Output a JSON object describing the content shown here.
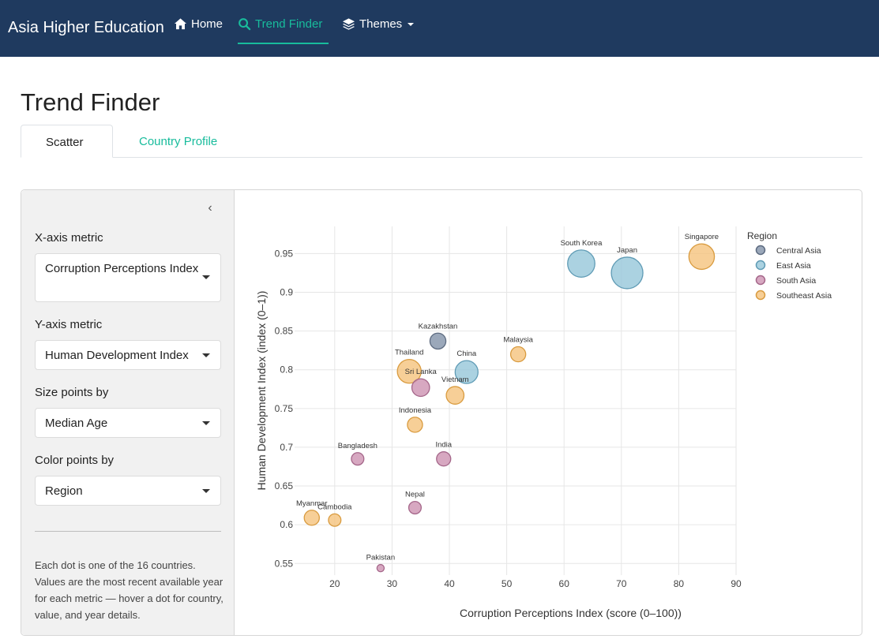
{
  "nav": {
    "brand": "Asia Higher Education",
    "items": [
      {
        "label": "Home",
        "icon": "home-icon"
      },
      {
        "label": "Trend Finder",
        "icon": "search-icon"
      },
      {
        "label": "Themes",
        "icon": "layers-icon"
      }
    ]
  },
  "page": {
    "title": "Trend Finder"
  },
  "tabs": [
    "Scatter",
    "Country Profile"
  ],
  "sidebar": {
    "collapse_glyph": "‹",
    "x_label": "X-axis metric",
    "x_value": "Corruption Perceptions Index",
    "y_label": "Y-axis metric",
    "y_value": "Human Development Index",
    "size_label": "Size points by",
    "size_value": "Median Age",
    "color_label": "Color points by",
    "color_value": "Region",
    "help": "Each dot is one of the 16 countries. Values are the most recent available year for each metric — hover a dot for country, value, and year details."
  },
  "colors": {
    "accent": "#18bc9c",
    "navbar": "#1f3a5f",
    "regions": {
      "Central Asia": "#7f8fa6",
      "East Asia": "#93c5d9",
      "South Asia": "#cc8fb0",
      "Southeast Asia": "#f5c27a"
    }
  },
  "chart_data": {
    "type": "scatter",
    "xlabel": "Corruption Perceptions Index (score (0–100))",
    "ylabel": "Human Development Index (index (0–1))",
    "xlim": [
      13,
      90
    ],
    "ylim": [
      0.535,
      0.985
    ],
    "xticks": [
      20,
      30,
      40,
      50,
      60,
      70,
      80,
      90
    ],
    "yticks": [
      0.55,
      0.6,
      0.65,
      0.7,
      0.75,
      0.8,
      0.85,
      0.9,
      0.95
    ],
    "ytick_labels": [
      "0.55",
      "0.6",
      "0.65",
      "0.7",
      "0.75",
      "0.8",
      "0.85",
      "0.9",
      "0.95"
    ],
    "grid": true,
    "legend": {
      "title": "Region",
      "position": "top-right",
      "entries": [
        "Central Asia",
        "East Asia",
        "South Asia",
        "Southeast Asia"
      ]
    },
    "size_by": "Median Age",
    "points": [
      {
        "country": "South Korea",
        "region": "East Asia",
        "x": 63,
        "y": 0.937,
        "size": 44
      },
      {
        "country": "Japan",
        "region": "East Asia",
        "x": 71,
        "y": 0.925,
        "size": 49
      },
      {
        "country": "Singapore",
        "region": "Southeast Asia",
        "x": 84,
        "y": 0.946,
        "size": 42
      },
      {
        "country": "Kazakhstan",
        "region": "Central Asia",
        "x": 38,
        "y": 0.837,
        "size": 31
      },
      {
        "country": "Malaysia",
        "region": "Southeast Asia",
        "x": 52,
        "y": 0.82,
        "size": 30
      },
      {
        "country": "China",
        "region": "East Asia",
        "x": 43,
        "y": 0.797,
        "size": 39
      },
      {
        "country": "Thailand",
        "region": "Southeast Asia",
        "x": 33,
        "y": 0.798,
        "size": 40
      },
      {
        "country": "Sri Lanka",
        "region": "South Asia",
        "x": 35,
        "y": 0.777,
        "size": 33
      },
      {
        "country": "Vietnam",
        "region": "Southeast Asia",
        "x": 41,
        "y": 0.767,
        "size": 33
      },
      {
        "country": "Indonesia",
        "region": "Southeast Asia",
        "x": 34,
        "y": 0.729,
        "size": 30
      },
      {
        "country": "Bangladesh",
        "region": "South Asia",
        "x": 24,
        "y": 0.685,
        "size": 27
      },
      {
        "country": "India",
        "region": "South Asia",
        "x": 39,
        "y": 0.685,
        "size": 29
      },
      {
        "country": "Nepal",
        "region": "South Asia",
        "x": 34,
        "y": 0.622,
        "size": 27
      },
      {
        "country": "Myanmar",
        "region": "Southeast Asia",
        "x": 16,
        "y": 0.609,
        "size": 30
      },
      {
        "country": "Cambodia",
        "region": "Southeast Asia",
        "x": 20,
        "y": 0.606,
        "size": 27
      },
      {
        "country": "Pakistan",
        "region": "South Asia",
        "x": 28,
        "y": 0.544,
        "size": 21
      }
    ]
  }
}
